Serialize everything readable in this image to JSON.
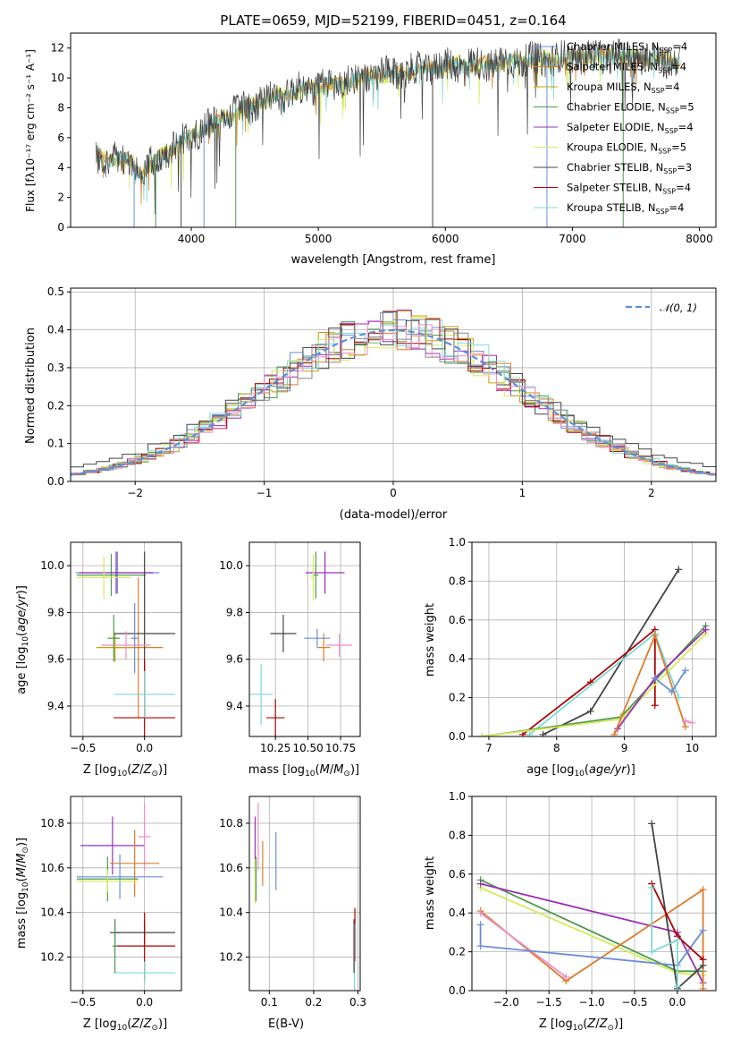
{
  "colors": {
    "Chabrier MILES": "#6a8fd8",
    "Salpeter MILES": "#e07b28",
    "Kroupa MILES": "#c9a000",
    "Chabrier ELODIE": "#4c9a4c",
    "Salpeter ELODIE": "#9c2fb5",
    "Kroupa ELODIE": "#d6eb5a",
    "Chabrier STELIB": "#444444",
    "Salpeter STELIB": "#b00000",
    "Kroupa STELIB": "#7fd8d8",
    "pink": "#f08cc8",
    "gray2": "#888888"
  },
  "chart_data": [
    {
      "id": "spectrum",
      "type": "line",
      "title": "PLATE=0659, MJD=52199, FIBERID=0451, z=0.164",
      "xlabel": "wavelength [Angstrom, rest frame]",
      "ylabel": "Flux [fλ10⁻¹⁷ erg cm⁻² s⁻¹ A⁻¹]",
      "xlim": [
        3050,
        8130
      ],
      "ylim": [
        0,
        13
      ],
      "xticks": [
        "4000",
        "5000",
        "6000",
        "7000",
        "8000"
      ],
      "yticks": [
        "0",
        "2",
        "4",
        "6",
        "8",
        "10",
        "12"
      ],
      "legend_position": "right",
      "legend": [
        {
          "name": "Chabrier MILES",
          "sub": "SSP",
          "n": "=4"
        },
        {
          "name": "Salpeter MILES",
          "sub": "SSP",
          "n": "=4"
        },
        {
          "name": "Kroupa MILES",
          "sub": "SSP",
          "n": "=4"
        },
        {
          "name": "Chabrier ELODIE",
          "sub": "SSP",
          "n": "=5"
        },
        {
          "name": "Salpeter ELODIE",
          "sub": "SSP",
          "n": "=4"
        },
        {
          "name": "Kroupa ELODIE",
          "sub": "SSP",
          "n": "=5"
        },
        {
          "name": "Chabrier STELIB",
          "sub": "SSP",
          "n": "=3"
        },
        {
          "name": "Salpeter STELIB",
          "sub": "SSP",
          "n": "=4"
        },
        {
          "name": "Kroupa STELIB",
          "sub": "SSP",
          "n": "=4"
        }
      ],
      "envelope": {
        "x": [
          3250,
          3500,
          3600,
          3750,
          3900,
          4000,
          4100,
          4300,
          4500,
          4700,
          4900,
          5100,
          5300,
          5500,
          5700,
          5900,
          6100,
          6300,
          6500,
          6700,
          6900,
          7100,
          7300,
          7500,
          7700,
          7850
        ],
        "y": [
          4.6,
          4.5,
          3.6,
          4.7,
          5.6,
          6.2,
          6.5,
          7.5,
          8.3,
          8.8,
          9.3,
          9.5,
          9.9,
          10.2,
          10.4,
          10.7,
          10.9,
          10.9,
          11.1,
          11.2,
          11.3,
          11.4,
          11.5,
          11.4,
          11.2,
          11.0
        ]
      },
      "vertical_drops": [
        3550,
        3720,
        3920,
        4100,
        4350,
        5900,
        6800,
        7400
      ]
    },
    {
      "id": "residuals",
      "type": "line",
      "xlabel": "(data-model)/error",
      "ylabel": "Normed distribution",
      "xlim": [
        -2.5,
        2.5
      ],
      "ylim": [
        0,
        0.51
      ],
      "xticks": [
        "-2",
        "-1",
        "0",
        "1",
        "2"
      ],
      "yticks": [
        "0.0",
        "0.1",
        "0.2",
        "0.3",
        "0.4",
        "0.5"
      ],
      "legend": [
        {
          "name": "𝒩(0, 1)"
        }
      ],
      "legend_position": "top-right",
      "gaussian": {
        "mean": 0,
        "sigma": 1
      }
    },
    {
      "id": "age-vs-z",
      "type": "scatter",
      "xlabel": "Z [log10(Z/Z☉)]",
      "ylabel": "age  [log10(age/yr)]",
      "xlim": [
        -0.6,
        0.3
      ],
      "ylim": [
        9.27,
        10.1
      ],
      "xticks": [
        "-0.5",
        "0.0"
      ],
      "yticks": [
        "9.4",
        "9.6",
        "9.8",
        "10.0"
      ],
      "points": [
        {
          "s": "Chabrier MILES",
          "x": -0.22,
          "y": 9.97,
          "ex": 0.34,
          "ey": 0.09
        },
        {
          "s": "Salpeter MILES",
          "x": -0.05,
          "y": 9.65,
          "ex": 0.2,
          "ey": 0.3
        },
        {
          "s": "Kroupa MILES",
          "x": -0.24,
          "y": 9.65,
          "ex": 0.15,
          "ey": 0.06
        },
        {
          "s": "Chabrier ELODIE",
          "x": -0.27,
          "y": 9.96,
          "ex": 0.28,
          "ey": 0.09
        },
        {
          "s": "Salpeter ELODIE",
          "x": -0.23,
          "y": 9.97,
          "ex": 0.3,
          "ey": 0.09
        },
        {
          "s": "Kroupa ELODIE",
          "x": -0.33,
          "y": 9.95,
          "ex": 0.22,
          "ey": 0.09
        },
        {
          "s": "Chabrier STELIB",
          "x": 0.0,
          "y": 9.71,
          "ex": 0.25,
          "ey": 0.35
        },
        {
          "s": "Salpeter STELIB",
          "x": 0.0,
          "y": 9.35,
          "ex": 0.25,
          "ey": 0.25
        },
        {
          "s": "Kroupa STELIB",
          "x": 0.0,
          "y": 9.45,
          "ex": 0.25,
          "ey": 0.1
        },
        {
          "s": "pink",
          "x": -0.15,
          "y": 9.66,
          "ex": 0.2,
          "ey": 0.06
        },
        {
          "s": "Chabrier ELODIE",
          "x": -0.25,
          "y": 9.69,
          "ex": 0.05,
          "ey": 0.1
        },
        {
          "s": "Chabrier MILES",
          "x": -0.08,
          "y": 9.69,
          "ex": 0.03,
          "ey": 0.15
        }
      ]
    },
    {
      "id": "age-vs-mass",
      "type": "scatter",
      "xlabel": "mass [log10(M/M☉)]",
      "xlim": [
        10.05,
        10.9
      ],
      "ylim": [
        9.27,
        10.1
      ],
      "xticks": [
        "10.25",
        "10.50",
        "10.75"
      ],
      "yticks": [
        "9.4",
        "9.6",
        "9.8",
        "10.0"
      ],
      "points": [
        {
          "s": "Chabrier STELIB",
          "x": 10.31,
          "y": 9.71,
          "ex": 0.1,
          "ey": 0.08
        },
        {
          "s": "Salpeter STELIB",
          "x": 10.25,
          "y": 9.35,
          "ex": 0.07,
          "ey": 0.08
        },
        {
          "s": "Kroupa STELIB",
          "x": 10.14,
          "y": 9.45,
          "ex": 0.09,
          "ey": 0.13
        },
        {
          "s": "Salpeter ELODIE",
          "x": 10.63,
          "y": 9.97,
          "ex": 0.15,
          "ey": 0.09
        },
        {
          "s": "Chabrier ELODIE",
          "x": 10.56,
          "y": 9.96,
          "ex": 0.02,
          "ey": 0.1
        },
        {
          "s": "Kroupa ELODIE",
          "x": 10.54,
          "y": 9.95,
          "ex": 0.02,
          "ey": 0.1
        },
        {
          "s": "Salpeter MILES",
          "x": 10.62,
          "y": 9.65,
          "ex": 0.05,
          "ey": 0.06
        },
        {
          "s": "Chabrier MILES",
          "x": 10.57,
          "y": 9.69,
          "ex": 0.1,
          "ey": 0.04
        },
        {
          "s": "pink",
          "x": 10.74,
          "y": 9.66,
          "ex": 0.1,
          "ey": 0.05
        }
      ]
    },
    {
      "id": "weight-vs-age",
      "type": "line",
      "xlabel": "age  [log10(age/yr)]",
      "ylabel": "mass weight",
      "xlim": [
        6.75,
        10.35
      ],
      "ylim": [
        0,
        1.0
      ],
      "xticks": [
        "7",
        "8",
        "9",
        "10"
      ],
      "yticks": [
        "0.0",
        "0.2",
        "0.4",
        "0.6",
        "0.8",
        "1.0"
      ],
      "series": [
        {
          "s": "Chabrier STELIB",
          "x": [
            7.8,
            8.5,
            9.8
          ],
          "y": [
            0.01,
            0.13,
            0.86
          ]
        },
        {
          "s": "Salpeter STELIB",
          "x": [
            7.5,
            8.5,
            9.45,
            9.45
          ],
          "y": [
            0.01,
            0.28,
            0.55,
            0.16
          ]
        },
        {
          "s": "Kroupa STELIB",
          "x": [
            7.6,
            9.45,
            9.8
          ],
          "y": [
            0.01,
            0.53,
            0.2
          ]
        },
        {
          "s": "Chabrier ELODIE",
          "x": [
            6.9,
            8.95,
            10.2
          ],
          "y": [
            0.0,
            0.1,
            0.57
          ]
        },
        {
          "s": "Kroupa ELODIE",
          "x": [
            6.9,
            8.95,
            10.2
          ],
          "y": [
            0.0,
            0.09,
            0.53
          ]
        },
        {
          "s": "Salpeter ELODIE",
          "x": [
            8.9,
            9.45,
            10.2
          ],
          "y": [
            0.04,
            0.3,
            0.55
          ]
        },
        {
          "s": "Salpeter MILES",
          "x": [
            8.85,
            9.45,
            9.9
          ],
          "y": [
            0.01,
            0.52,
            0.05
          ]
        },
        {
          "s": "Chabrier MILES",
          "x": [
            9.45,
            9.7,
            9.9
          ],
          "y": [
            0.3,
            0.23,
            0.34
          ]
        },
        {
          "s": "pink",
          "x": [
            9.9,
            10.0
          ],
          "y": [
            0.08,
            0.07
          ]
        }
      ]
    },
    {
      "id": "mass-vs-z",
      "type": "scatter",
      "xlabel": "Z [log10(Z/Z☉)]",
      "ylabel": "mass [log10(M/M☉)]",
      "xlim": [
        -0.6,
        0.3
      ],
      "ylim": [
        10.05,
        10.92
      ],
      "xticks": [
        "-0.5",
        "0.0"
      ],
      "yticks": [
        "10.2",
        "10.4",
        "10.6",
        "10.8"
      ],
      "points": [
        {
          "s": "Salpeter ELODIE",
          "x": -0.26,
          "y": 10.7,
          "ex": 0.26,
          "ey": 0.13
        },
        {
          "s": "pink",
          "x": 0.0,
          "y": 10.74,
          "ex": 0.05,
          "ey": 0.15
        },
        {
          "s": "Salpeter MILES",
          "x": -0.08,
          "y": 10.62,
          "ex": 0.2,
          "ey": 0.15
        },
        {
          "s": "Chabrier MILES",
          "x": -0.2,
          "y": 10.56,
          "ex": 0.35,
          "ey": 0.1
        },
        {
          "s": "Chabrier ELODIE",
          "x": -0.3,
          "y": 10.55,
          "ex": 0.25,
          "ey": 0.1
        },
        {
          "s": "Kroupa ELODIE",
          "x": -0.3,
          "y": 10.54,
          "ex": 0.25,
          "ey": 0.05
        },
        {
          "s": "Chabrier STELIB",
          "x": -0.24,
          "y": 10.31,
          "ex": 0.04,
          "ey": 0.06
        },
        {
          "s": "Chabrier STELIB",
          "x": 0.0,
          "y": 10.31,
          "ex": 0.25,
          "ey": 0.05
        },
        {
          "s": "Salpeter STELIB",
          "x": 0.0,
          "y": 10.25,
          "ex": 0.25,
          "ey": 0.15
        },
        {
          "s": "Kroupa STELIB",
          "x": 0.0,
          "y": 10.13,
          "ex": 0.25,
          "ey": 0.05
        },
        {
          "s": "Chabrier ELODIE",
          "x": -0.24,
          "y": 10.25,
          "ex": 0.02,
          "ey": 0.12
        }
      ]
    },
    {
      "id": "mass-vs-ebv",
      "type": "scatter",
      "xlabel": "E(B-V)",
      "xlim": [
        0.055,
        0.305
      ],
      "ylim": [
        10.05,
        10.92
      ],
      "xticks": [
        "0.1",
        "0.2",
        "0.3"
      ],
      "yticks": [
        "10.2",
        "10.4",
        "10.6",
        "10.8"
      ],
      "points": [
        {
          "s": "Salpeter ELODIE",
          "x": 0.068,
          "y": 10.7,
          "ey": 0.13
        },
        {
          "s": "pink",
          "x": 0.075,
          "y": 10.74,
          "ey": 0.15
        },
        {
          "s": "Kroupa ELODIE",
          "x": 0.068,
          "y": 10.54,
          "ey": 0.1
        },
        {
          "s": "Chabrier ELODIE",
          "x": 0.07,
          "y": 10.55,
          "ey": 0.1
        },
        {
          "s": "Salpeter MILES",
          "x": 0.085,
          "y": 10.62,
          "ey": 0.1
        },
        {
          "s": "Chabrier MILES",
          "x": 0.115,
          "y": 10.63,
          "ey": 0.13
        },
        {
          "s": "Salpeter STELIB",
          "x": 0.293,
          "y": 10.3,
          "ey": 0.12
        },
        {
          "s": "Kroupa STELIB",
          "x": 0.292,
          "y": 10.2,
          "ey": 0.15
        },
        {
          "s": "Chabrier STELIB",
          "x": 0.291,
          "y": 10.25,
          "ey": 0.12
        }
      ]
    },
    {
      "id": "weight-vs-z",
      "type": "line",
      "xlabel": "Z [log10(Z/Z☉)]",
      "ylabel": "mass weight",
      "xlim": [
        -2.4,
        0.45
      ],
      "ylim": [
        0,
        1.0
      ],
      "xticks": [
        "-2.0",
        "-1.5",
        "-1.0",
        "-0.5",
        "0.0"
      ],
      "yticks": [
        "0.0",
        "0.2",
        "0.4",
        "0.6",
        "0.8",
        "1.0"
      ],
      "series": [
        {
          "s": "Chabrier ELODIE",
          "x": [
            -2.3,
            0.0,
            0.3
          ],
          "y": [
            0.57,
            0.1,
            0.1
          ]
        },
        {
          "s": "Kroupa ELODIE",
          "x": [
            -2.3,
            0.0,
            0.3
          ],
          "y": [
            0.53,
            0.09,
            0.08
          ]
        },
        {
          "s": "Salpeter ELODIE",
          "x": [
            -2.3,
            0.0,
            0.3
          ],
          "y": [
            0.55,
            0.3,
            0.04
          ]
        },
        {
          "s": "Salpeter MILES",
          "x": [
            -2.3,
            -1.3,
            0.3,
            0.3
          ],
          "y": [
            0.41,
            0.05,
            0.52,
            0.01
          ]
        },
        {
          "s": "pink",
          "x": [
            -2.3,
            -1.3
          ],
          "y": [
            0.4,
            0.07
          ]
        },
        {
          "s": "Chabrier MILES",
          "x": [
            -2.3,
            -2.3,
            0.0,
            0.3
          ],
          "y": [
            0.34,
            0.23,
            0.13,
            0.31
          ]
        },
        {
          "s": "Chabrier STELIB",
          "x": [
            -0.3,
            0.0,
            0.3
          ],
          "y": [
            0.86,
            0.01,
            0.13
          ]
        },
        {
          "s": "Salpeter STELIB",
          "x": [
            -0.3,
            0.0,
            0.3
          ],
          "y": [
            0.55,
            0.28,
            0.16
          ]
        },
        {
          "s": "Kroupa STELIB",
          "x": [
            -0.3,
            -0.3,
            0.0,
            0.0
          ],
          "y": [
            0.53,
            0.2,
            0.26,
            0.02
          ]
        }
      ]
    }
  ]
}
